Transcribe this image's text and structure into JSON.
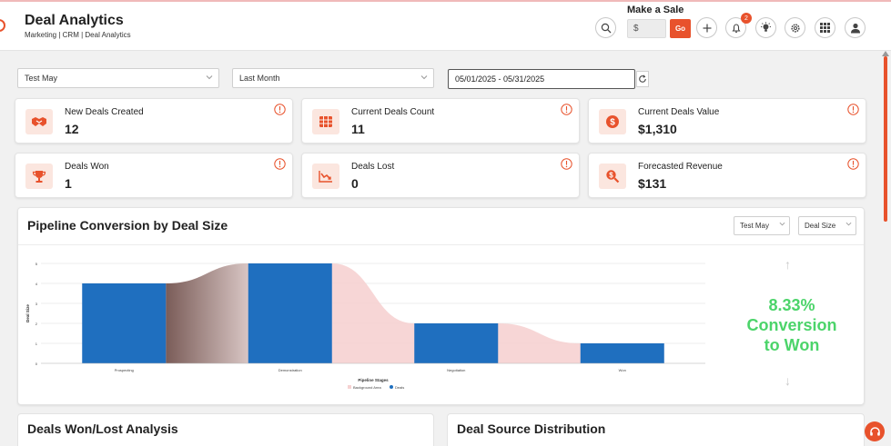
{
  "header": {
    "title": "Deal Analytics",
    "breadcrumb": "Marketing | CRM | Deal Analytics",
    "make_sale_label": "Make a Sale",
    "sale_input_value": "$",
    "go_label": "Go",
    "notification_count": "2"
  },
  "filters": {
    "pipeline": "Test May",
    "period": "Last Month",
    "date_range": "05/01/2025 - 05/31/2025"
  },
  "kpis": [
    {
      "label": "New Deals Created",
      "value": "12",
      "icon": "handshake-icon"
    },
    {
      "label": "Current Deals Count",
      "value": "11",
      "icon": "grid-icon"
    },
    {
      "label": "Current Deals Value",
      "value": "$1,310",
      "icon": "dollar-icon"
    },
    {
      "label": "Deals Won",
      "value": "1",
      "icon": "trophy-icon"
    },
    {
      "label": "Deals Lost",
      "value": "0",
      "icon": "trend-down-icon"
    },
    {
      "label": "Forecasted Revenue",
      "value": "$131",
      "icon": "search-dollar-icon"
    }
  ],
  "pipeline": {
    "title": "Pipeline Conversion by Deal Size",
    "filter_pipeline": "Test May",
    "filter_metric": "Deal Size",
    "conversion_line1": "8.33%",
    "conversion_line2": "Conversion",
    "conversion_line3": "to Won"
  },
  "chart_data": {
    "type": "bar",
    "categories": [
      "Prospecting",
      "Demonstration",
      "Negotiation",
      "Won"
    ],
    "series": [
      {
        "name": "Deals",
        "values": [
          4,
          5,
          2,
          1
        ]
      },
      {
        "name": "Background Area",
        "values": [
          4,
          5,
          2,
          1
        ]
      }
    ],
    "y_ticks": [
      "0",
      "1",
      "2",
      "3",
      "4",
      "5"
    ],
    "xlabel": "Pipeline Stages",
    "ylabel": "Deal Size",
    "ylim": [
      0,
      5
    ],
    "legend_position": "bottom",
    "grid": true
  },
  "bottom": {
    "won_lost_title": "Deals Won/Lost Analysis",
    "source_title": "Deal Source Distribution"
  },
  "colors": {
    "accent": "#e8522c",
    "bar": "#1f6fbf",
    "area": "#f6d2d2",
    "conversion": "#4cd46a"
  }
}
